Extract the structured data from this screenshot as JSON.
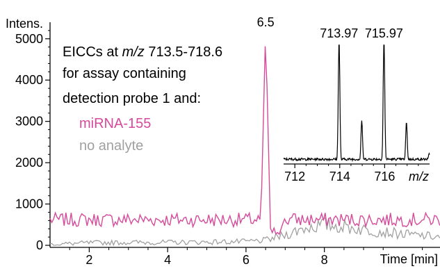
{
  "chart_data": {
    "type": "line",
    "main": {
      "ylabel": "Intens.",
      "xlabel": "Time [min]",
      "xlim": [
        1.0,
        10.95
      ],
      "ylim": [
        -50,
        5400
      ],
      "xticks": [
        2,
        4,
        6,
        8
      ],
      "yticks": [
        0,
        1000,
        2000,
        3000,
        4000,
        5000
      ],
      "peak_label": "6.5",
      "series": [
        {
          "name": "miRNA-155",
          "color": "#d54a9a",
          "baseline": 620,
          "noise": 170,
          "peak": {
            "x": 6.5,
            "y": 5200
          }
        },
        {
          "name": "no analyte",
          "color": "#a0a0a0",
          "points": [
            [
              1.0,
              20
            ],
            [
              2.0,
              60
            ],
            [
              3.0,
              70
            ],
            [
              4.0,
              70
            ],
            [
              5.0,
              80
            ],
            [
              6.0,
              90
            ],
            [
              6.5,
              120
            ],
            [
              7.0,
              250
            ],
            [
              7.5,
              420
            ],
            [
              8.0,
              500
            ],
            [
              8.5,
              450
            ],
            [
              9.0,
              380
            ],
            [
              9.5,
              330
            ],
            [
              10.0,
              270
            ],
            [
              10.95,
              200
            ]
          ]
        }
      ]
    },
    "annotation": {
      "line1_pre": "EICCs at ",
      "line1_italic": "m/z",
      "line1_post": " 713.5-718.6",
      "line2": "for assay containing",
      "line3": "detection probe 1 and:"
    },
    "inset": {
      "type": "line",
      "xlabel": "m/z",
      "xlim": [
        711.5,
        718.0
      ],
      "xticks": [
        712,
        714,
        716
      ],
      "ylim": [
        0,
        1.0
      ],
      "color": "#000000",
      "peaks": [
        {
          "x": 713.97,
          "y": 1.0,
          "label": "713.97"
        },
        {
          "x": 714.98,
          "y": 0.34
        },
        {
          "x": 715.97,
          "y": 1.0,
          "label": "715.97"
        },
        {
          "x": 716.97,
          "y": 0.33
        },
        {
          "x": 717.98,
          "y": 0.07
        }
      ]
    }
  }
}
